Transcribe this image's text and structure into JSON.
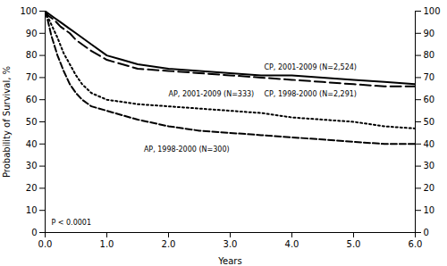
{
  "chart_data": {
    "type": "line",
    "xlabel": "Years",
    "ylabel": "Probability of Survival, %",
    "xlim": [
      0,
      6
    ],
    "ylim": [
      0,
      100
    ],
    "xticks": [
      0,
      1,
      2,
      3,
      4,
      5,
      6
    ],
    "yticks": [
      0,
      10,
      20,
      30,
      40,
      50,
      60,
      70,
      80,
      90,
      100
    ],
    "y2lim": [
      0,
      100
    ],
    "y2ticks": [
      0,
      10,
      20,
      30,
      40,
      50,
      60,
      70,
      80,
      90,
      100
    ],
    "grid": false,
    "series": [
      {
        "name": "CP, 2001-2009 (N=2,524)",
        "color": "#000000",
        "line_style": "solid",
        "x": [
          0,
          0.05,
          0.15,
          0.25,
          0.4,
          0.5,
          0.6,
          0.75,
          1.0,
          1.25,
          1.5,
          2.0,
          2.5,
          3.0,
          3.5,
          4.0,
          4.5,
          5.0,
          5.5,
          6.0
        ],
        "values": [
          100,
          99,
          97,
          95,
          92,
          90,
          88,
          85,
          80,
          78,
          76,
          74,
          73,
          72,
          71,
          71,
          70,
          69,
          68,
          67
        ]
      },
      {
        "name": "CP, 1998-2000 (N=2,291)",
        "color": "#000000",
        "line_style": "long_dashed",
        "x": [
          0,
          0.05,
          0.15,
          0.25,
          0.4,
          0.5,
          0.6,
          0.75,
          1.0,
          1.25,
          1.5,
          2.0,
          2.5,
          3.0,
          3.5,
          4.0,
          4.5,
          5.0,
          5.5,
          6.0
        ],
        "values": [
          100,
          98,
          96,
          93,
          90,
          87,
          85,
          82,
          78,
          76,
          74,
          73,
          72,
          71,
          70,
          69,
          68,
          67,
          66,
          66
        ]
      },
      {
        "name": "AP, 2001-2009 (N=333)",
        "color": "#000000",
        "line_style": "dotted",
        "x": [
          0,
          0.05,
          0.1,
          0.2,
          0.3,
          0.4,
          0.5,
          0.6,
          0.75,
          1.0,
          1.25,
          1.5,
          2.0,
          2.5,
          3.0,
          3.5,
          4.0,
          4.5,
          5.0,
          5.5,
          6.0
        ],
        "values": [
          100,
          97,
          94,
          88,
          81,
          76,
          71,
          67,
          63,
          60,
          59,
          58,
          57,
          56,
          55,
          54,
          52,
          51,
          50,
          48,
          47
        ]
      },
      {
        "name": "AP, 1998-2000 (N=300)",
        "color": "#000000",
        "line_style": "dashed",
        "x": [
          0,
          0.05,
          0.1,
          0.2,
          0.3,
          0.4,
          0.5,
          0.6,
          0.75,
          1.0,
          1.25,
          1.5,
          2.0,
          2.5,
          3.0,
          3.5,
          4.0,
          4.5,
          5.0,
          5.5,
          6.0
        ],
        "values": [
          100,
          95,
          89,
          80,
          73,
          67,
          63,
          60,
          57,
          55,
          53,
          51,
          48,
          46,
          45,
          44,
          43,
          42,
          41,
          40,
          40
        ]
      }
    ],
    "annotations": [
      {
        "text": "CP, 2001-2009 (N=2,524)",
        "x": 3.55,
        "y": 74.5
      },
      {
        "text": "CP, 1998-2000 (N=2,291)",
        "x": 3.55,
        "y": 62.5
      },
      {
        "text": "AP, 2001-2009 (N=333)",
        "x": 2.0,
        "y": 62.5
      },
      {
        "text": "AP, 1998-2000 (N=300)",
        "x": 1.6,
        "y": 37.5
      },
      {
        "text": "P < 0.0001",
        "x": 0.1,
        "y": 4.5
      }
    ]
  }
}
